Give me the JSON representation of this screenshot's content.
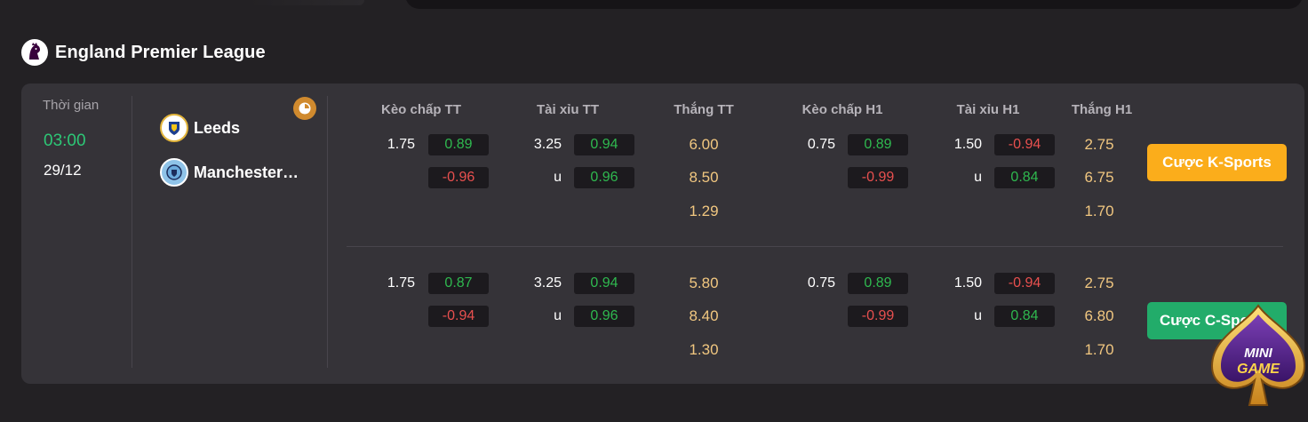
{
  "league": {
    "title": "England Premier League",
    "logo_icon": "premier-league-lion-icon"
  },
  "match": {
    "time_label": "Thời gian",
    "time": "03:00",
    "date": "29/12",
    "home_team": "Leeds",
    "away_team": "Manchester City",
    "stats_icon": "stats-clock-icon"
  },
  "columns": [
    "Kèo chấp TT",
    "Tài xỉu TT",
    "Thắng TT",
    "Kèo chấp H1",
    "Tài xỉu H1",
    "Thắng H1"
  ],
  "books": [
    {
      "button_label": "Cược K-Sports",
      "button_color": "#fbad1b",
      "hdp_tt": {
        "line": "1.75",
        "home": "0.89",
        "away": "-0.96"
      },
      "ou_tt": {
        "line": "3.25",
        "under_label": "u",
        "over": "0.94",
        "under": "0.96"
      },
      "win_tt": [
        "6.00",
        "8.50",
        "1.29"
      ],
      "hdp_h1": {
        "line": "0.75",
        "home": "0.89",
        "away": "-0.99"
      },
      "ou_h1": {
        "line": "1.50",
        "under_label": "u",
        "over": "-0.94",
        "under": "0.84"
      },
      "win_h1": [
        "2.75",
        "6.75",
        "1.70"
      ]
    },
    {
      "button_label": "Cược C-Sports",
      "button_color": "#22ac6a",
      "hdp_tt": {
        "line": "1.75",
        "home": "0.87",
        "away": "-0.94"
      },
      "ou_tt": {
        "line": "3.25",
        "under_label": "u",
        "over": "0.94",
        "under": "0.96"
      },
      "win_tt": [
        "5.80",
        "8.40",
        "1.30"
      ],
      "hdp_h1": {
        "line": "0.75",
        "home": "0.89",
        "away": "-0.99"
      },
      "ou_h1": {
        "line": "1.50",
        "under_label": "u",
        "over": "-0.94",
        "under": "0.84"
      },
      "win_h1": [
        "2.75",
        "6.80",
        "1.70"
      ]
    }
  ],
  "minigame": {
    "line1": "MINI",
    "line2": "GAME"
  },
  "colors": {
    "positive": "#2fb84f",
    "negative": "#e8504f",
    "win_odds": "#f1c780",
    "time": "#2dc776"
  }
}
